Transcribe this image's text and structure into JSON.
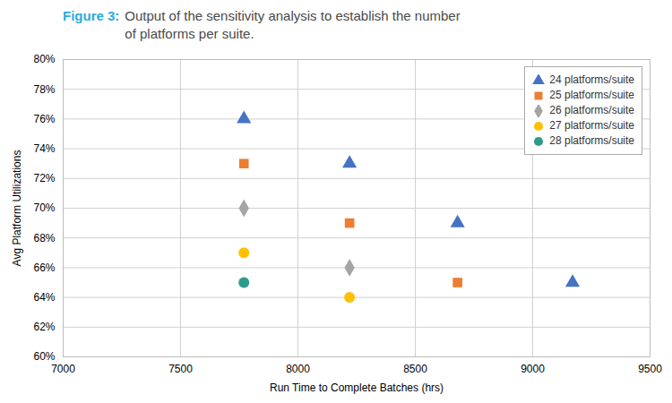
{
  "chart_data": {
    "type": "scatter",
    "title": "Figure 3:",
    "subtitle": "Output of the sensitivity analysis to establish the number\nof platforms per suite.",
    "x_label": "Run Time to Complete Batches (hrs)",
    "y_label": "Avg Platform Utilizations",
    "xlim": [
      7000,
      9500
    ],
    "ylim": [
      0.6,
      0.8
    ],
    "xticks": [
      7000,
      7500,
      8000,
      8500,
      9000,
      9500
    ],
    "yticks": [
      {
        "value": 0.6,
        "label": "60%"
      },
      {
        "value": 0.62,
        "label": "62%"
      },
      {
        "value": 0.64,
        "label": "64%"
      },
      {
        "value": 0.66,
        "label": "66%"
      },
      {
        "value": 0.68,
        "label": "68%"
      },
      {
        "value": 0.7,
        "label": "70%"
      },
      {
        "value": 0.72,
        "label": "72%"
      },
      {
        "value": 0.74,
        "label": "74%"
      },
      {
        "value": 0.76,
        "label": "76%"
      },
      {
        "value": 0.78,
        "label": "78%"
      },
      {
        "value": 0.8,
        "label": "80%"
      }
    ],
    "grid": true,
    "legend": "upper right",
    "series": [
      {
        "name": "24 platforms/suite",
        "color": "#4472C4",
        "marker": "triangle",
        "x": [
          7770,
          8220,
          8680,
          9170
        ],
        "values": [
          0.76,
          0.73,
          0.69,
          0.65
        ]
      },
      {
        "name": "25 platforms/suite",
        "color": "#ED7D31",
        "marker": "square",
        "x": [
          7770,
          8220,
          8680
        ],
        "values": [
          0.73,
          0.69,
          0.65
        ]
      },
      {
        "name": "26 platforms/suite",
        "color": "#A5A5A5",
        "marker": "diamond",
        "x": [
          7770,
          8220
        ],
        "values": [
          0.7,
          0.66
        ]
      },
      {
        "name": "27 platforms/suite",
        "color": "#FFC000",
        "marker": "circle",
        "x": [
          7770,
          8220
        ],
        "values": [
          0.67,
          0.64
        ]
      },
      {
        "name": "28 platforms/suite",
        "color": "#2E9B8C",
        "marker": "circle",
        "x": [
          7770
        ],
        "values": [
          0.65
        ]
      }
    ]
  }
}
